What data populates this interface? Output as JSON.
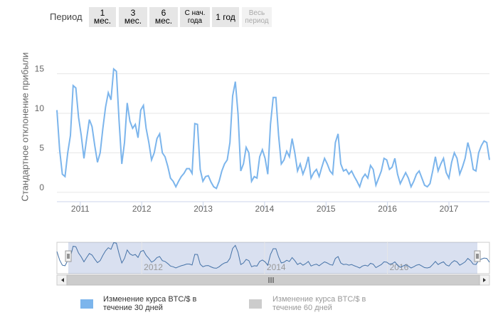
{
  "range_selector": {
    "label": "Период",
    "buttons": [
      "1 мес.",
      "3 мес.",
      "6 мес.",
      "С нач. года",
      "1 год",
      "Весь период"
    ]
  },
  "chart_data": {
    "type": "line",
    "y_axis_label": "Стандартное отклонение прибыли",
    "x": [
      2010.62,
      2010.664,
      2010.708,
      2010.752,
      2010.796,
      2010.84,
      2010.884,
      2010.928,
      2010.972,
      2011.016,
      2011.06,
      2011.104,
      2011.148,
      2011.192,
      2011.236,
      2011.28,
      2011.324,
      2011.368,
      2011.412,
      2011.456,
      2011.5,
      2011.544,
      2011.588,
      2011.632,
      2011.676,
      2011.72,
      2011.764,
      2011.808,
      2011.852,
      2011.896,
      2011.94,
      2011.984,
      2012.028,
      2012.072,
      2012.116,
      2012.16,
      2012.204,
      2012.248,
      2012.292,
      2012.336,
      2012.38,
      2012.424,
      2012.468,
      2012.512,
      2012.556,
      2012.6,
      2012.644,
      2012.688,
      2012.732,
      2012.776,
      2012.82,
      2012.864,
      2012.908,
      2012.952,
      2012.996,
      2013.04,
      2013.084,
      2013.128,
      2013.172,
      2013.216,
      2013.26,
      2013.304,
      2013.348,
      2013.392,
      2013.436,
      2013.48,
      2013.524,
      2013.568,
      2013.612,
      2013.656,
      2013.7,
      2013.744,
      2013.788,
      2013.832,
      2013.876,
      2013.92,
      2013.964,
      2014.008,
      2014.052,
      2014.096,
      2014.14,
      2014.184,
      2014.228,
      2014.272,
      2014.316,
      2014.36,
      2014.404,
      2014.448,
      2014.492,
      2014.536,
      2014.58,
      2014.624,
      2014.668,
      2014.712,
      2014.756,
      2014.8,
      2014.844,
      2014.888,
      2014.932,
      2014.976,
      2015.02,
      2015.064,
      2015.108,
      2015.152,
      2015.196,
      2015.24,
      2015.284,
      2015.328,
      2015.372,
      2015.416,
      2015.46,
      2015.504,
      2015.548,
      2015.592,
      2015.636,
      2015.68,
      2015.724,
      2015.768,
      2015.812,
      2015.856,
      2015.9,
      2015.944,
      2015.988,
      2016.032,
      2016.076,
      2016.12,
      2016.164,
      2016.208,
      2016.252,
      2016.296,
      2016.34,
      2016.384,
      2016.428,
      2016.472,
      2016.516,
      2016.56,
      2016.604,
      2016.648,
      2016.692,
      2016.736,
      2016.78,
      2016.824,
      2016.868,
      2016.912,
      2016.956,
      2017.0,
      2017.044,
      2017.088,
      2017.132,
      2017.176,
      2017.22,
      2017.264,
      2017.308,
      2017.352,
      2017.396,
      2017.44,
      2017.484,
      2017.528,
      2017.572,
      2017.616,
      2017.66
    ],
    "series": [
      {
        "name": "Изменение курса BTC/$ в течение 30 дней",
        "color": "#7cb5ec",
        "visible": true,
        "values": [
          10.4,
          5.4,
          2.3,
          2.0,
          5,
          7.2,
          13.5,
          13.2,
          9.5,
          7.2,
          4.3,
          6.8,
          9.2,
          8.3,
          5.9,
          3.8,
          5,
          8.1,
          10.8,
          12.6,
          11.7,
          15.6,
          15.3,
          9,
          3.6,
          6.3,
          11.3,
          9,
          8.1,
          8.6,
          6.9,
          10.4,
          11,
          8.1,
          6.3,
          4.1,
          5,
          6.8,
          7.4,
          5,
          4.5,
          3.3,
          1.8,
          1.4,
          0.7,
          1.4,
          2,
          2.4,
          3,
          3,
          2.4,
          8.7,
          8.6,
          2.9,
          1.4,
          2,
          2.1,
          1.3,
          0.7,
          0.5,
          1.4,
          2.7,
          3.6,
          4.1,
          6.3,
          12.2,
          14,
          9.9,
          2.7,
          3.6,
          5.7,
          5,
          1.4,
          2,
          1.8,
          4.5,
          5.4,
          4.3,
          2.3,
          8.6,
          12,
          12,
          7.2,
          3.6,
          4.1,
          5.2,
          4.5,
          6.8,
          5,
          2.7,
          3.6,
          2.3,
          3.2,
          4.5,
          1.8,
          2.5,
          2.9,
          2,
          3.2,
          4.3,
          3.6,
          2.7,
          2.3,
          6.3,
          7.4,
          3.6,
          2.7,
          2.9,
          2.3,
          2.7,
          2,
          1.4,
          0.7,
          1.8,
          2.3,
          1.8,
          3.4,
          2.9,
          0.9,
          1.8,
          2.7,
          4.3,
          4.1,
          2.9,
          3.2,
          4.3,
          2.3,
          1.1,
          1.8,
          2.5,
          1.8,
          0.7,
          1.4,
          2.3,
          2.7,
          1.8,
          0.9,
          0.7,
          1.1,
          2.7,
          4.5,
          2.7,
          3.6,
          4.3,
          2.5,
          1.8,
          3.8,
          5,
          4.3,
          2.3,
          3.2,
          4.3,
          6.3,
          5,
          2.9,
          2.7,
          5,
          5.9,
          6.5,
          6.3,
          4.1
        ]
      },
      {
        "name": "Изменение курса BTC/$ в течение 60 дней",
        "color": "#cccccc",
        "visible": false
      }
    ],
    "xlim": [
      2010.62,
      2017.66
    ],
    "xticks": [
      2011,
      2012,
      2013,
      2014,
      2015,
      2016,
      2017
    ],
    "ylim": [
      -1,
      20
    ],
    "yticks": [
      0,
      5,
      10,
      15
    ],
    "grid": true,
    "navigator": {
      "xticks": [
        2012,
        2014,
        2016
      ]
    }
  }
}
